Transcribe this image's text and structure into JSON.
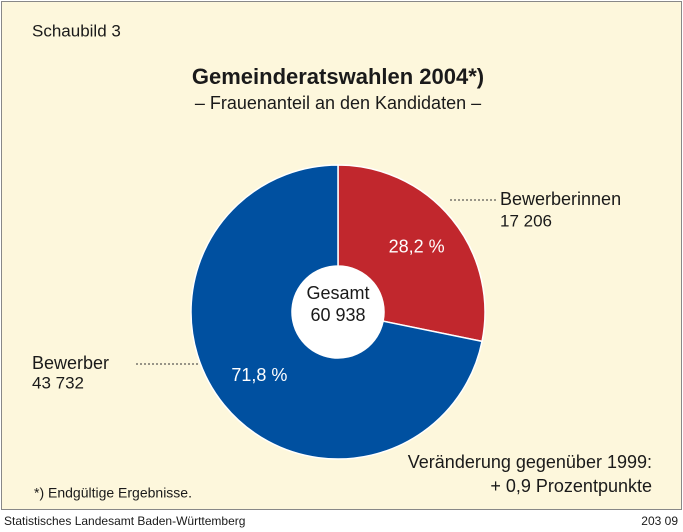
{
  "chart_data": {
    "type": "pie",
    "donut": true,
    "figure_label": "Schaubild 3",
    "title": "Gemeinderatswahlen 2004*)",
    "subtitle": "– Frauenanteil an den Kandidaten –",
    "categories": [
      "Bewerberinnen",
      "Bewerber"
    ],
    "values": [
      28.2,
      71.8
    ],
    "value_labels": [
      "28,2 %",
      "71,8 %"
    ],
    "counts": [
      "17 206",
      "43 732"
    ],
    "colors": [
      "#c1272d",
      "#0050a0"
    ],
    "center_label": "Gesamt",
    "center_value": "60 938",
    "annotation": [
      "Veränderung gegenüber 1999:",
      "+ 0,9 Prozentpunkte"
    ],
    "footnote": "*) Endgültige Ergebnisse.",
    "source": "Statistisches Landesamt Baden-Württemberg",
    "code": "203 09"
  }
}
